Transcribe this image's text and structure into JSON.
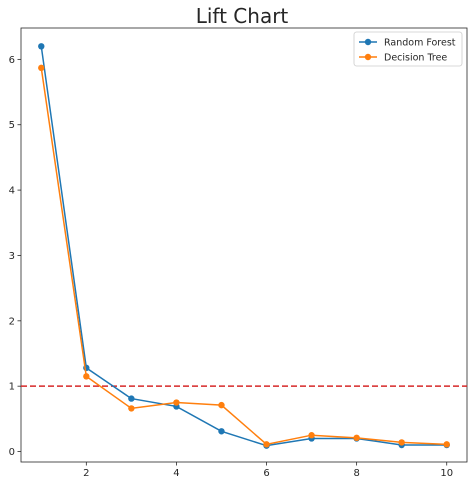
{
  "chart_data": {
    "type": "line",
    "title": "Lift Chart",
    "xlabel": "",
    "ylabel": "",
    "x": [
      1,
      2,
      3,
      4,
      5,
      6,
      7,
      8,
      9,
      10
    ],
    "xlim": [
      0.55,
      10.45
    ],
    "ylim": [
      -0.16,
      6.48
    ],
    "xticks": [
      2,
      4,
      6,
      8,
      10
    ],
    "yticks": [
      0,
      1,
      2,
      3,
      4,
      5,
      6
    ],
    "grid": false,
    "legend_position": "top-right",
    "series": [
      {
        "name": "Random Forest",
        "color": "#1f77b4",
        "marker": "circle",
        "values": [
          6.2,
          1.28,
          0.81,
          0.69,
          0.31,
          0.09,
          0.2,
          0.2,
          0.1,
          0.1
        ]
      },
      {
        "name": "Decision Tree",
        "color": "#ff7f0e",
        "marker": "circle",
        "values": [
          5.87,
          1.15,
          0.66,
          0.75,
          0.71,
          0.11,
          0.25,
          0.21,
          0.14,
          0.11
        ]
      }
    ],
    "reference_line": {
      "y": 1,
      "color": "#d62728",
      "style": "dashed"
    }
  }
}
